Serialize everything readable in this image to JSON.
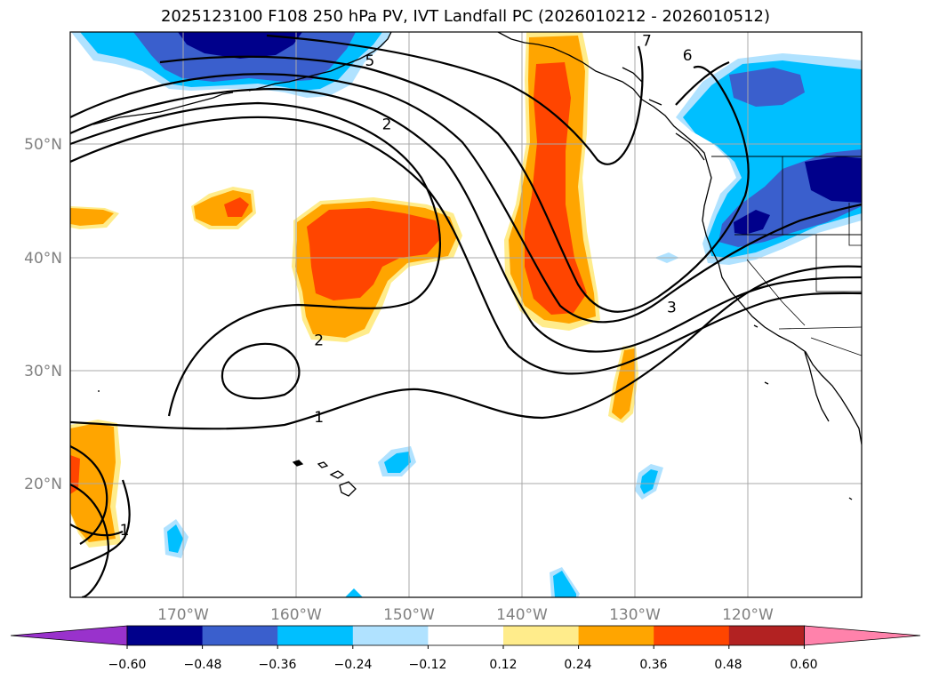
{
  "title": "2025123100 F108 250 hPa PV, IVT Landfall PC (2026010212 - 2026010512)",
  "map": {
    "projection": "equirectangular",
    "lon_range": [
      -180,
      -110
    ],
    "lat_range": [
      10,
      60
    ],
    "gridlines": true
  },
  "lat_ticks": [
    {
      "lat": 50,
      "label": "50°N"
    },
    {
      "lat": 40,
      "label": "40°N"
    },
    {
      "lat": 30,
      "label": "30°N"
    },
    {
      "lat": 20,
      "label": "20°N"
    }
  ],
  "lon_ticks": [
    {
      "lon": -170,
      "label": "170°W"
    },
    {
      "lon": -160,
      "label": "160°W"
    },
    {
      "lon": -150,
      "label": "150°W"
    },
    {
      "lon": -140,
      "label": "140°W"
    },
    {
      "lon": -130,
      "label": "130°W"
    },
    {
      "lon": -120,
      "label": "120°W"
    }
  ],
  "colorbar": {
    "colors": [
      "#9932cc",
      "#00008b",
      "#3a5fcd",
      "#00bfff",
      "#b0e2ff",
      "#ffffff",
      "#ffec8b",
      "#ffa500",
      "#ff4500",
      "#b22222",
      "#ff82ab"
    ],
    "tick_labels": [
      "−0.60",
      "−0.48",
      "−0.36",
      "−0.24",
      "−0.12",
      "0.12",
      "0.24",
      "0.36",
      "0.48",
      "0.60"
    ]
  },
  "contour_labels": [
    {
      "text": "1",
      "lon": -158,
      "lat": 25.5
    },
    {
      "text": "2",
      "lon": -158,
      "lat": 32.3
    },
    {
      "text": "2",
      "lon": -152,
      "lat": 51.4
    },
    {
      "text": "3",
      "lon": -126.8,
      "lat": 35.2
    },
    {
      "text": "5",
      "lon": -153.5,
      "lat": 57
    },
    {
      "text": "6",
      "lon": -125.4,
      "lat": 57.5
    },
    {
      "text": "7",
      "lon": -129,
      "lat": 58.8
    },
    {
      "text": "1",
      "lon": -175.2,
      "lat": 15.5
    }
  ]
}
